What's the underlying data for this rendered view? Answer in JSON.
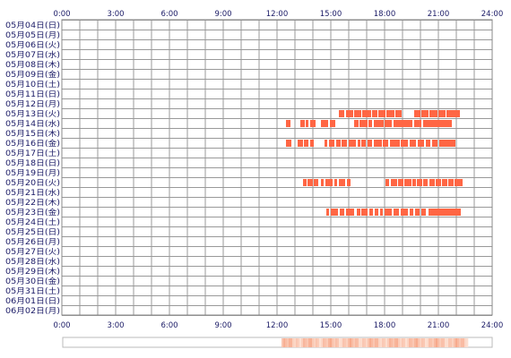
{
  "chart_data": {
    "type": "heatmap",
    "x_axis": {
      "unit": "hour",
      "range": [
        0,
        24
      ],
      "tick_labels": [
        "0:00",
        "3:00",
        "6:00",
        "9:00",
        "12:00",
        "15:00",
        "18:00",
        "21:00",
        "24:00"
      ],
      "tick_values": [
        0,
        3,
        6,
        9,
        12,
        15,
        18,
        21,
        24
      ],
      "minor_step_hours": 1,
      "shown_top_and_bottom": true
    },
    "rows": [
      "05月04日(日)",
      "05月05日(月)",
      "05月06日(火)",
      "05月07日(水)",
      "05月08日(木)",
      "05月09日(金)",
      "05月10日(土)",
      "05月11日(日)",
      "05月12日(月)",
      "05月13日(火)",
      "05月14日(水)",
      "05月15日(木)",
      "05月16日(金)",
      "05月17日(土)",
      "05月18日(日)",
      "05月19日(月)",
      "05月20日(火)",
      "05月21日(水)",
      "05月22日(木)",
      "05月23日(金)",
      "05月24日(土)",
      "05月25日(日)",
      "05月26日(月)",
      "05月27日(火)",
      "05月28日(水)",
      "05月29日(木)",
      "05月30日(金)",
      "05月31日(土)",
      "06月01日(日)",
      "06月02日(月)"
    ],
    "activity": [
      {
        "row": 9,
        "segments": [
          [
            15.45,
            15.75
          ],
          [
            15.85,
            16.25
          ],
          [
            16.3,
            16.7
          ],
          [
            16.75,
            17.25
          ],
          [
            17.3,
            17.6
          ],
          [
            17.65,
            18.05
          ],
          [
            18.1,
            18.55
          ],
          [
            18.6,
            18.95
          ],
          [
            19.65,
            20.0
          ],
          [
            20.05,
            20.45
          ],
          [
            20.5,
            20.95
          ],
          [
            21.0,
            21.4
          ],
          [
            21.45,
            22.2
          ]
        ]
      },
      {
        "row": 10,
        "segments": [
          [
            12.5,
            12.75
          ],
          [
            13.3,
            13.55
          ],
          [
            13.6,
            13.75
          ],
          [
            13.85,
            14.15
          ],
          [
            14.45,
            14.85
          ],
          [
            14.95,
            15.25
          ],
          [
            16.3,
            16.55
          ],
          [
            16.6,
            17.05
          ],
          [
            17.1,
            17.3
          ],
          [
            17.4,
            17.95
          ],
          [
            18.0,
            18.4
          ],
          [
            18.5,
            19.55
          ],
          [
            19.65,
            20.05
          ],
          [
            20.15,
            21.75
          ]
        ]
      },
      {
        "row": 12,
        "segments": [
          [
            12.5,
            12.8
          ],
          [
            13.15,
            13.45
          ],
          [
            13.5,
            13.75
          ],
          [
            13.85,
            14.05
          ],
          [
            14.65,
            14.8
          ],
          [
            14.9,
            15.2
          ],
          [
            15.3,
            15.55
          ],
          [
            15.6,
            15.9
          ],
          [
            16.0,
            16.4
          ],
          [
            16.5,
            16.65
          ],
          [
            16.7,
            16.95
          ],
          [
            17.05,
            17.3
          ],
          [
            17.4,
            17.85
          ],
          [
            17.9,
            18.2
          ],
          [
            18.3,
            18.85
          ],
          [
            18.9,
            19.3
          ],
          [
            19.4,
            19.75
          ],
          [
            19.85,
            20.2
          ],
          [
            20.3,
            20.55
          ],
          [
            20.65,
            20.95
          ],
          [
            21.05,
            21.95
          ]
        ]
      },
      {
        "row": 16,
        "segments": [
          [
            13.45,
            13.65
          ],
          [
            13.7,
            14.0
          ],
          [
            14.05,
            14.3
          ],
          [
            14.45,
            14.6
          ],
          [
            14.7,
            15.1
          ],
          [
            15.2,
            15.35
          ],
          [
            15.45,
            15.8
          ],
          [
            15.9,
            16.1
          ],
          [
            18.05,
            18.25
          ],
          [
            18.35,
            18.7
          ],
          [
            18.75,
            19.05
          ],
          [
            19.1,
            19.5
          ],
          [
            19.55,
            19.75
          ],
          [
            19.8,
            20.1
          ],
          [
            20.15,
            20.4
          ],
          [
            20.5,
            20.8
          ],
          [
            20.85,
            21.15
          ],
          [
            21.2,
            21.5
          ],
          [
            21.55,
            21.85
          ],
          [
            21.9,
            22.35
          ]
        ]
      },
      {
        "row": 19,
        "segments": [
          [
            14.75,
            14.9
          ],
          [
            15.0,
            15.4
          ],
          [
            15.5,
            15.75
          ],
          [
            15.85,
            16.3
          ],
          [
            16.45,
            16.65
          ],
          [
            16.7,
            17.05
          ],
          [
            17.15,
            17.35
          ],
          [
            17.45,
            17.65
          ],
          [
            17.75,
            17.9
          ],
          [
            18.0,
            18.4
          ],
          [
            18.5,
            18.8
          ],
          [
            18.9,
            19.3
          ],
          [
            19.4,
            19.6
          ],
          [
            19.7,
            19.95
          ],
          [
            20.05,
            20.3
          ],
          [
            20.45,
            22.25
          ]
        ]
      }
    ],
    "summary_strip": {
      "type": "hourly density",
      "range": [
        12.25,
        22.6
      ]
    },
    "colors": {
      "activity": "#ff6644",
      "grid": "#999999",
      "frame": "#888888",
      "label": "#1a1a66",
      "strip_low": "#fde3d6",
      "strip_high": "#f7a98b"
    }
  }
}
